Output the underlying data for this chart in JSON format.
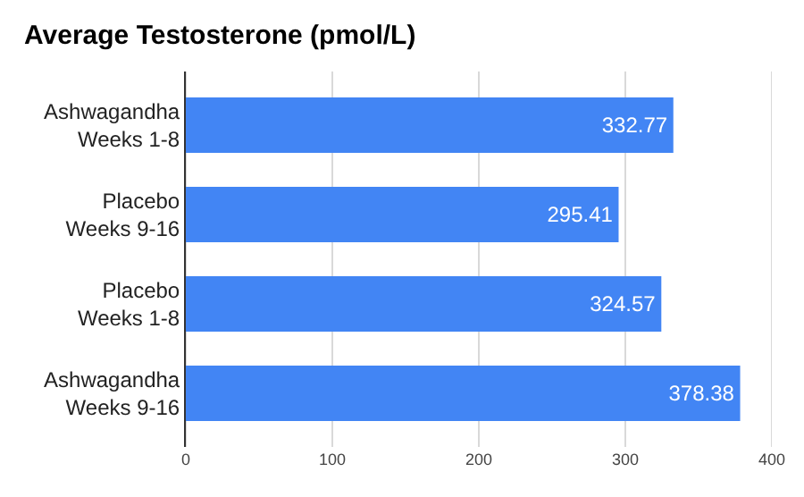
{
  "chart_data": {
    "type": "bar",
    "orientation": "horizontal",
    "title": "Average Testosterone (pmol/L)",
    "categories": [
      "Ashwagandha\nWeeks 1-8",
      "Placebo\nWeeks 9-16",
      "Placebo\nWeeks 1-8",
      "Ashwagandha\nWeeks 9-16"
    ],
    "values": [
      332.77,
      295.41,
      324.57,
      378.38
    ],
    "color": "#4285f4",
    "xlim": [
      0,
      400
    ],
    "xticks": [
      0,
      100,
      200,
      300,
      400
    ],
    "grid": "x",
    "data_labels": true
  }
}
